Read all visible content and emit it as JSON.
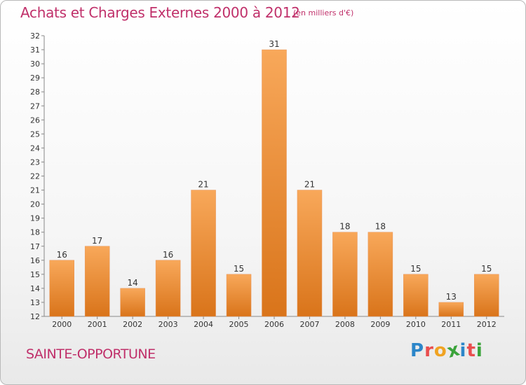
{
  "title": "Achats et Charges Externes 2000 à 2012",
  "subtitle": "(en milliers d'€)",
  "commune": "SAINTE-OPPORTUNE",
  "logo": {
    "letters": [
      "P",
      "r",
      "o",
      "x",
      "i",
      "t",
      "i"
    ],
    "colors": [
      "#2c86c9",
      "#e94e4e",
      "#f0a322",
      "#3aa33a",
      "#2c86c9",
      "#e94e4e",
      "#3aa33a"
    ]
  },
  "colors": {
    "bar_light": "#f8a85a",
    "bar_dark": "#d9741a",
    "title": "#c0306a"
  },
  "chart_data": {
    "type": "bar",
    "title": "Achats et Charges Externes 2000 à 2012",
    "subtitle": "(en milliers d'€)",
    "categories": [
      "2000",
      "2001",
      "2002",
      "2003",
      "2004",
      "2005",
      "2006",
      "2007",
      "2008",
      "2009",
      "2010",
      "2011",
      "2012"
    ],
    "values": [
      16,
      17,
      14,
      16,
      21,
      15,
      31,
      21,
      18,
      18,
      15,
      13,
      15
    ],
    "xlabel": "",
    "ylabel": "",
    "ylim": [
      12,
      32
    ],
    "yticks": [
      12,
      13,
      14,
      15,
      16,
      17,
      18,
      19,
      20,
      21,
      22,
      23,
      24,
      25,
      26,
      27,
      28,
      29,
      30,
      31,
      32
    ],
    "grid": false,
    "legend": "none"
  }
}
